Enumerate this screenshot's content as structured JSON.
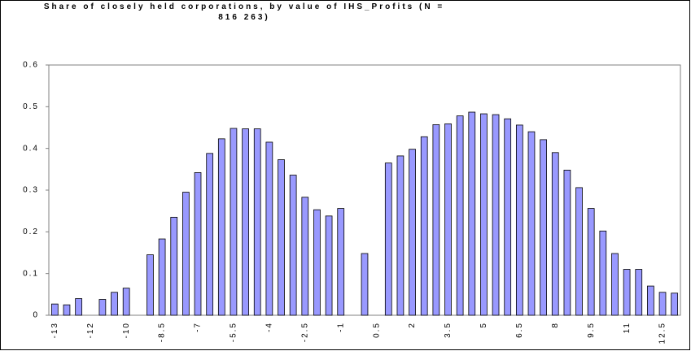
{
  "chart_data": {
    "type": "bar",
    "title": "Share of closely held corporations, by value of IHS_Profits (N =\n816 263)",
    "categories": [
      "-13",
      null,
      null,
      "-12",
      null,
      null,
      "-10",
      null,
      null,
      "-8.5",
      null,
      null,
      "-7",
      null,
      null,
      "-5.5",
      null,
      null,
      "-4",
      null,
      null,
      "-2.5",
      null,
      null,
      "-1",
      null,
      null,
      "0.5",
      null,
      null,
      "2",
      null,
      null,
      "3.5",
      null,
      null,
      "5",
      null,
      null,
      "6.5",
      null,
      null,
      "8",
      null,
      null,
      "9.5",
      null,
      null,
      "11",
      null,
      null,
      "12.5",
      null
    ],
    "values": [
      0.027,
      0.025,
      0.04,
      null,
      0.038,
      0.055,
      0.065,
      null,
      0.145,
      0.183,
      0.235,
      0.295,
      0.342,
      0.388,
      0.423,
      0.448,
      0.447,
      0.447,
      0.415,
      0.373,
      0.336,
      0.283,
      0.253,
      0.238,
      0.256,
      null,
      0.148,
      null,
      0.365,
      0.382,
      0.398,
      0.428,
      0.457,
      0.459,
      0.478,
      0.487,
      0.483,
      0.481,
      0.471,
      0.456,
      0.44,
      0.421,
      0.39,
      0.348,
      0.306,
      0.256,
      0.202,
      0.148,
      0.11,
      0.11,
      0.07,
      0.055,
      0.053
    ],
    "color": "#9999ff",
    "ylim": [
      0,
      0.6
    ],
    "yticks": [
      0,
      0.1,
      0.2,
      0.3,
      0.4,
      0.5,
      0.6
    ],
    "grid": false
  }
}
